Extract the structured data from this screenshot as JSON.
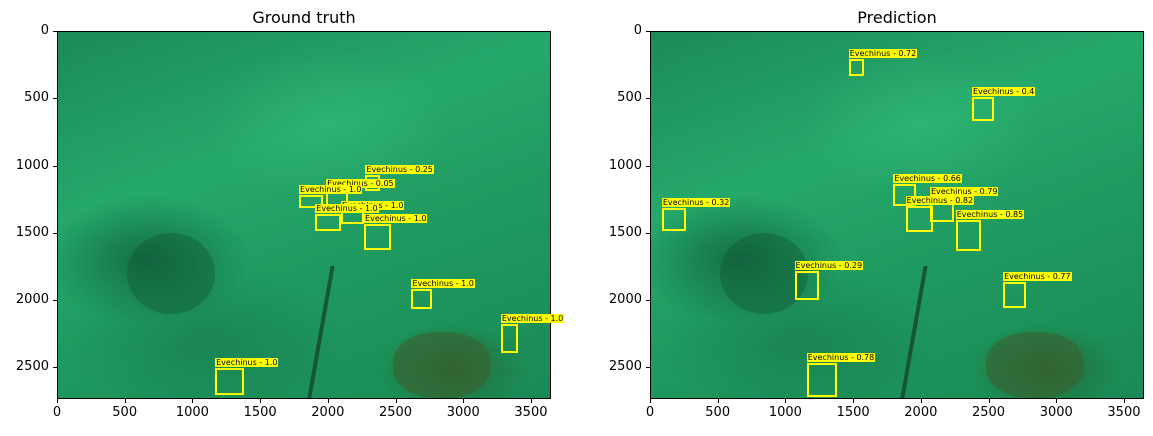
{
  "panels": [
    {
      "title": "Ground truth",
      "image": "underwater-seabed-photo",
      "boxes": [
        {
          "label": "Evechinus - 0.25",
          "x0": 2270,
          "y0": 1060,
          "x1": 2380,
          "y1": 1180
        },
        {
          "label": "Evechinus - 0.05",
          "x0": 1980,
          "y0": 1170,
          "x1": 2140,
          "y1": 1300
        },
        {
          "label": "Evechinus - 1.0",
          "x0": 1780,
          "y0": 1210,
          "x1": 1960,
          "y1": 1310
        },
        {
          "label": "Evechinus - 1.0",
          "x0": 2090,
          "y0": 1330,
          "x1": 2260,
          "y1": 1430
        },
        {
          "label": "Evechinus - 1.0",
          "x0": 1900,
          "y0": 1350,
          "x1": 2090,
          "y1": 1480
        },
        {
          "label": "Evechinus - 1.0",
          "x0": 2260,
          "y0": 1430,
          "x1": 2460,
          "y1": 1620
        },
        {
          "label": "Evechinus - 1.0",
          "x0": 2610,
          "y0": 1910,
          "x1": 2760,
          "y1": 2060
        },
        {
          "label": "Evechinus - 1.0",
          "x0": 3270,
          "y0": 2170,
          "x1": 3400,
          "y1": 2390
        },
        {
          "label": "Evechinus - 1.0",
          "x0": 1160,
          "y0": 2500,
          "x1": 1370,
          "y1": 2700
        }
      ]
    },
    {
      "title": "Prediction",
      "image": "underwater-seabed-photo",
      "boxes": [
        {
          "label": "Evechinus - 0.72",
          "x0": 1460,
          "y0": 200,
          "x1": 1570,
          "y1": 330
        },
        {
          "label": "Evechinus - 0.4",
          "x0": 2370,
          "y0": 480,
          "x1": 2530,
          "y1": 660
        },
        {
          "label": "Evechinus - 0.66",
          "x0": 1790,
          "y0": 1130,
          "x1": 1960,
          "y1": 1290
        },
        {
          "label": "Evechinus - 0.79",
          "x0": 2060,
          "y0": 1230,
          "x1": 2240,
          "y1": 1410
        },
        {
          "label": "Evechinus - 0.82",
          "x0": 1880,
          "y0": 1290,
          "x1": 2080,
          "y1": 1490
        },
        {
          "label": "Evechinus - 0.85",
          "x0": 2250,
          "y0": 1400,
          "x1": 2440,
          "y1": 1630
        },
        {
          "label": "Evechinus - 0.32",
          "x0": 80,
          "y0": 1310,
          "x1": 260,
          "y1": 1480
        },
        {
          "label": "Evechinus - 0.29",
          "x0": 1060,
          "y0": 1780,
          "x1": 1240,
          "y1": 1990
        },
        {
          "label": "Evechinus - 0.77",
          "x0": 2600,
          "y0": 1860,
          "x1": 2770,
          "y1": 2050
        },
        {
          "label": "Evechinus - 0.78",
          "x0": 1150,
          "y0": 2460,
          "x1": 1370,
          "y1": 2710
        }
      ]
    }
  ],
  "axes": {
    "xlim": [
      0,
      3648
    ],
    "ylim": [
      0,
      2736
    ],
    "x_ticks": [
      0,
      500,
      1000,
      1500,
      2000,
      2500,
      3000,
      3500
    ],
    "y_ticks": [
      0,
      500,
      1000,
      1500,
      2000,
      2500
    ]
  },
  "colors": {
    "box": "#ffff00",
    "label_bg": "#ffff00",
    "label_text": "#000000"
  }
}
